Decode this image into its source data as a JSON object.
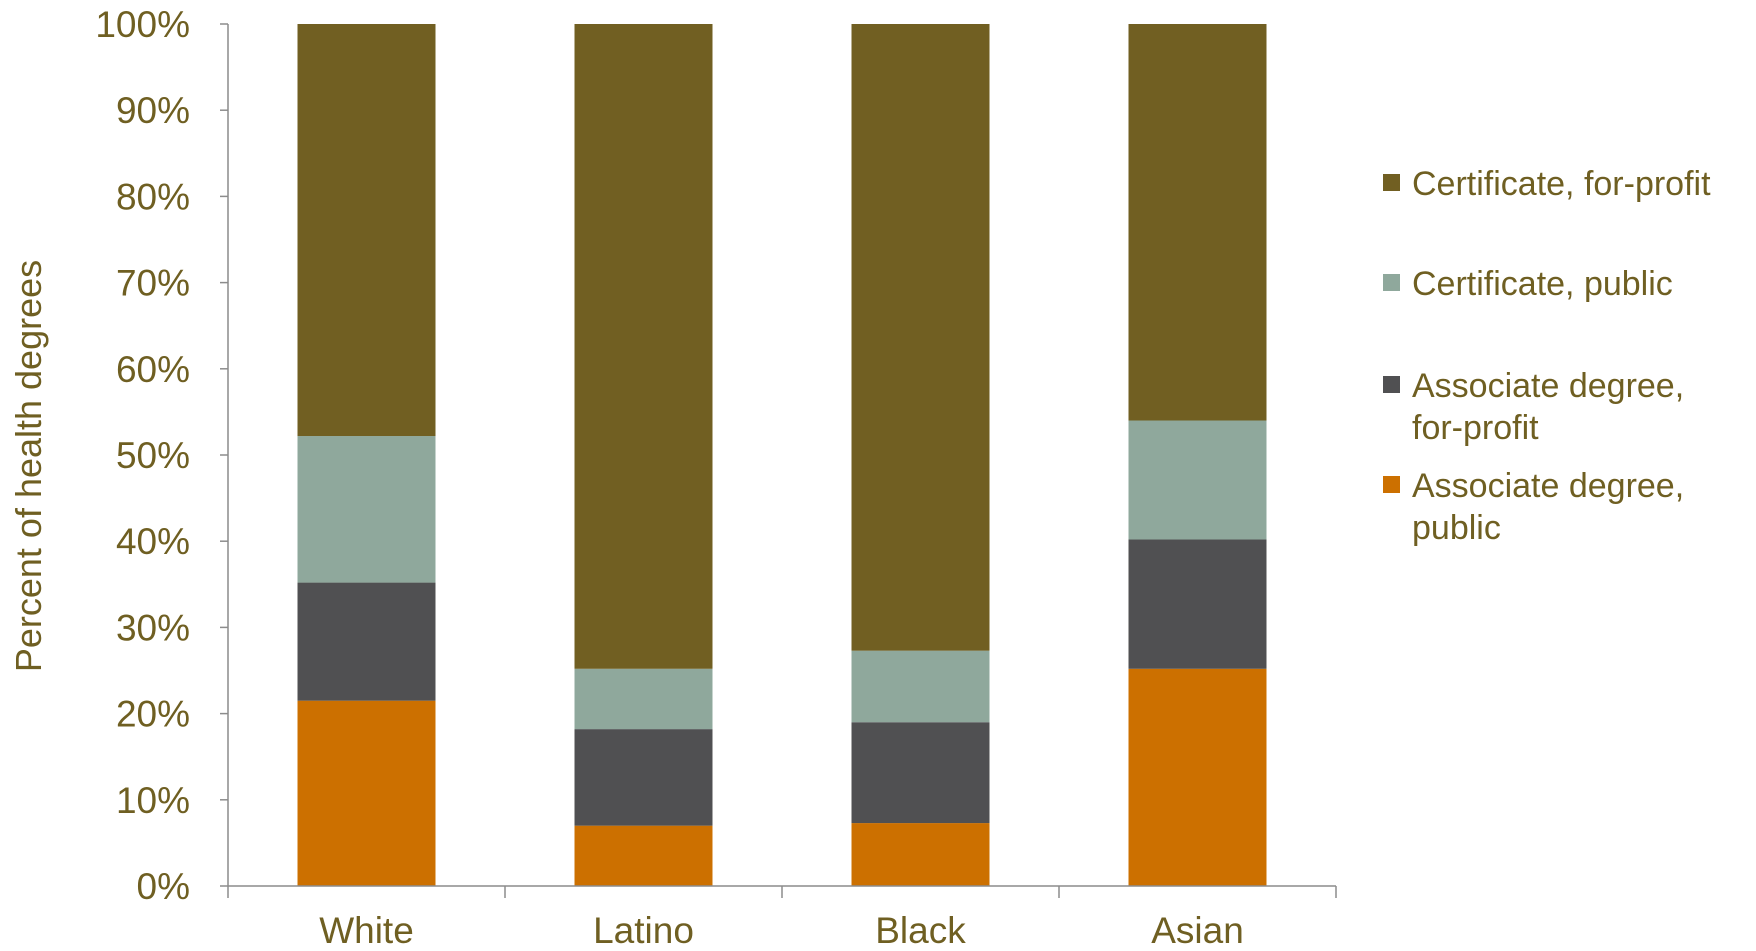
{
  "chart_data": {
    "type": "bar",
    "stacked": true,
    "categories": [
      "White",
      "Latino",
      "Black",
      "Asian"
    ],
    "ylabel": "Percent of health degrees",
    "ylim": [
      0,
      100
    ],
    "y_ticks": [
      "0%",
      "10%",
      "20%",
      "30%",
      "40%",
      "50%",
      "60%",
      "70%",
      "80%",
      "90%",
      "100%"
    ],
    "legend_position": "right",
    "series": [
      {
        "name": "Associate degree, public",
        "legend_lines": [
          "Associate degree,",
          "public"
        ],
        "color": "#cc7000",
        "values": [
          21.5,
          7.0,
          7.3,
          25.2
        ]
      },
      {
        "name": "Associate degree, for-profit",
        "legend_lines": [
          "Associate degree,",
          "for-profit"
        ],
        "color": "#505052",
        "values": [
          13.7,
          11.2,
          11.7,
          15.0
        ]
      },
      {
        "name": "Certificate, public",
        "legend_lines": [
          "Certificate, public"
        ],
        "color": "#8fa89c",
        "values": [
          17.0,
          7.0,
          8.3,
          13.8
        ]
      },
      {
        "name": "Certificate, for-profit",
        "legend_lines": [
          "Certificate, for-profit"
        ],
        "color": "#715f22",
        "values": [
          47.8,
          74.8,
          72.7,
          46.0
        ]
      }
    ]
  }
}
